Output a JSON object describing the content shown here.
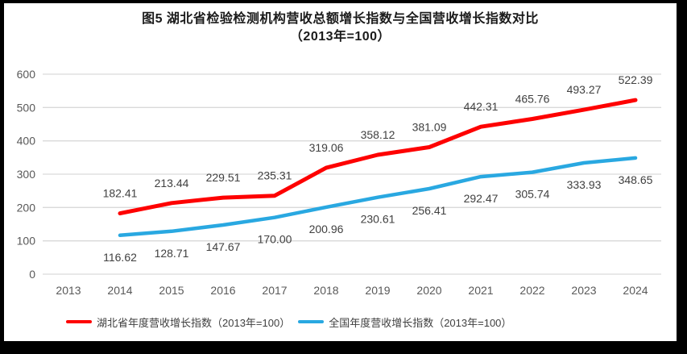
{
  "title": {
    "line1": "图5 湖北省检验检测机构营收总额增长指数与全国营收增长指数对比",
    "line2": "（2013年=100）"
  },
  "chart_data": {
    "type": "line",
    "categories": [
      "2013",
      "2014",
      "2015",
      "2016",
      "2017",
      "2018",
      "2019",
      "2020",
      "2021",
      "2022",
      "2023",
      "2024"
    ],
    "series": [
      {
        "name": "湖北省年度营收增长指数（2013年=100）",
        "color": "#fe0000",
        "label_position": "above",
        "values": [
          null,
          182.41,
          213.44,
          229.51,
          235.31,
          319.06,
          358.12,
          381.09,
          442.31,
          465.76,
          493.27,
          522.39
        ]
      },
      {
        "name": "全国年度营收增长指数（2013年=100）",
        "color": "#29a8e1",
        "label_position": "below",
        "values": [
          null,
          116.62,
          128.71,
          147.67,
          170.0,
          200.96,
          230.61,
          256.41,
          292.47,
          305.74,
          333.93,
          348.65
        ]
      }
    ],
    "ylim": [
      0,
      600
    ],
    "ytick_step": 100,
    "grid": true,
    "legend_position": "bottom",
    "xlabel": "",
    "ylabel": "",
    "label_decimals": 2
  },
  "style_colors": {
    "grid": "#d9d9d9",
    "axis_text": "#595959",
    "data_label": "#404040",
    "frame": "#000000"
  }
}
